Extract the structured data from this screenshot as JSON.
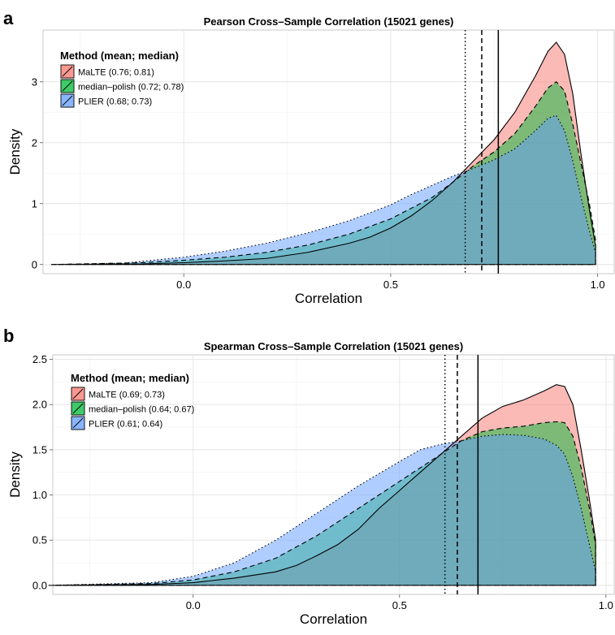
{
  "chart_data": [
    {
      "panel_label": "a",
      "type": "area",
      "title": "Pearson Cross–Sample Correlation (15021 genes)",
      "xlabel": "Correlation",
      "ylabel": "Density",
      "xlim": [
        -0.34,
        1.04
      ],
      "ylim": [
        -0.15,
        3.85
      ],
      "x_ticks": [
        0.0,
        0.5,
        1.0
      ],
      "x_tick_labels": [
        "0.0",
        "0.5",
        "1.0"
      ],
      "y_ticks": [
        0,
        1,
        2,
        3
      ],
      "y_tick_labels": [
        "0",
        "1",
        "2",
        "3"
      ],
      "grid": true,
      "legend": {
        "title": "Method (mean; median)",
        "position": "top-left",
        "entries": [
          {
            "label": "MaLTE (0.76; 0.81)",
            "color": "#F8766D"
          },
          {
            "label": "median–polish (0.72; 0.78)",
            "color": "#00BA38"
          },
          {
            "label": "PLIER (0.68; 0.73)",
            "color": "#619CFF"
          }
        ]
      },
      "vlines": [
        {
          "x": 0.76,
          "style": "solid",
          "method": "MaLTE"
        },
        {
          "x": 0.72,
          "style": "dashed",
          "method": "median-polish"
        },
        {
          "x": 0.68,
          "style": "dotted",
          "method": "PLIER"
        }
      ],
      "series": [
        {
          "name": "MaLTE (0.76; 0.81)",
          "color": "#F8766D",
          "line": "solid",
          "x": [
            -0.32,
            -0.1,
            0.0,
            0.1,
            0.2,
            0.3,
            0.4,
            0.45,
            0.5,
            0.55,
            0.6,
            0.65,
            0.7,
            0.75,
            0.8,
            0.85,
            0.88,
            0.9,
            0.92,
            0.94,
            0.96,
            0.98,
            0.995
          ],
          "y": [
            0.0,
            0.01,
            0.03,
            0.06,
            0.1,
            0.2,
            0.35,
            0.45,
            0.6,
            0.8,
            1.05,
            1.35,
            1.7,
            2.05,
            2.5,
            3.1,
            3.5,
            3.65,
            3.45,
            2.8,
            1.8,
            0.9,
            0.3
          ]
        },
        {
          "name": "median–polish (0.72; 0.78)",
          "color": "#00BA38",
          "line": "dashed",
          "x": [
            -0.32,
            -0.1,
            0.0,
            0.1,
            0.2,
            0.3,
            0.4,
            0.5,
            0.6,
            0.65,
            0.7,
            0.75,
            0.8,
            0.85,
            0.88,
            0.9,
            0.92,
            0.94,
            0.96,
            0.98,
            0.995
          ],
          "y": [
            0.0,
            0.03,
            0.07,
            0.12,
            0.2,
            0.32,
            0.5,
            0.75,
            1.1,
            1.35,
            1.62,
            1.85,
            2.15,
            2.6,
            2.9,
            3.0,
            2.85,
            2.3,
            1.65,
            1.0,
            0.4
          ]
        },
        {
          "name": "PLIER (0.68; 0.73)",
          "color": "#619CFF",
          "line": "dotted",
          "x": [
            -0.32,
            -0.15,
            0.0,
            0.1,
            0.2,
            0.3,
            0.4,
            0.5,
            0.55,
            0.6,
            0.65,
            0.7,
            0.75,
            0.8,
            0.85,
            0.88,
            0.9,
            0.92,
            0.94,
            0.96,
            0.98,
            0.995
          ],
          "y": [
            0.0,
            0.02,
            0.12,
            0.22,
            0.35,
            0.52,
            0.72,
            0.98,
            1.15,
            1.3,
            1.45,
            1.58,
            1.72,
            1.9,
            2.2,
            2.4,
            2.45,
            2.2,
            1.7,
            1.1,
            0.55,
            0.2
          ]
        }
      ]
    },
    {
      "panel_label": "b",
      "type": "area",
      "title": "Spearman Cross–Sample Correlation (15021 genes)",
      "xlabel": "Correlation",
      "ylabel": "Density",
      "xlim": [
        -0.34,
        1.02
      ],
      "ylim": [
        -0.1,
        2.55
      ],
      "x_ticks": [
        0.0,
        0.5,
        1.0
      ],
      "x_tick_labels": [
        "0.0",
        "0.5",
        "1.0"
      ],
      "y_ticks": [
        0.0,
        0.5,
        1.0,
        1.5,
        2.0,
        2.5
      ],
      "y_tick_labels": [
        "0.0",
        "0.5",
        "1.0",
        "1.5",
        "2.0",
        "2.5"
      ],
      "grid": true,
      "legend": {
        "title": "Method (mean; median)",
        "position": "top-left",
        "entries": [
          {
            "label": "MaLTE (0.69; 0.73)",
            "color": "#F8766D"
          },
          {
            "label": "median–polish (0.64; 0.67)",
            "color": "#00BA38"
          },
          {
            "label": "PLIER (0.61; 0.64)",
            "color": "#619CFF"
          }
        ]
      },
      "vlines": [
        {
          "x": 0.69,
          "style": "solid",
          "method": "MaLTE"
        },
        {
          "x": 0.64,
          "style": "dashed",
          "method": "median-polish"
        },
        {
          "x": 0.61,
          "style": "dotted",
          "method": "PLIER"
        }
      ],
      "series": [
        {
          "name": "MaLTE (0.69; 0.73)",
          "color": "#F8766D",
          "line": "solid",
          "x": [
            -0.35,
            -0.1,
            0.0,
            0.1,
            0.2,
            0.25,
            0.3,
            0.35,
            0.4,
            0.45,
            0.5,
            0.55,
            0.6,
            0.65,
            0.7,
            0.75,
            0.8,
            0.85,
            0.88,
            0.9,
            0.92,
            0.94,
            0.96,
            0.975
          ],
          "y": [
            0.0,
            0.01,
            0.03,
            0.08,
            0.15,
            0.22,
            0.33,
            0.45,
            0.62,
            0.85,
            1.05,
            1.25,
            1.45,
            1.65,
            1.85,
            1.98,
            2.05,
            2.15,
            2.22,
            2.2,
            2.0,
            1.5,
            0.95,
            0.5
          ]
        },
        {
          "name": "median–polish (0.64; 0.67)",
          "color": "#00BA38",
          "line": "dashed",
          "x": [
            -0.35,
            -0.1,
            0.0,
            0.1,
            0.2,
            0.3,
            0.4,
            0.5,
            0.6,
            0.65,
            0.7,
            0.75,
            0.8,
            0.85,
            0.88,
            0.9,
            0.92,
            0.94,
            0.96,
            0.975
          ],
          "y": [
            0.0,
            0.02,
            0.06,
            0.15,
            0.3,
            0.55,
            0.85,
            1.15,
            1.45,
            1.6,
            1.7,
            1.74,
            1.76,
            1.8,
            1.81,
            1.8,
            1.65,
            1.3,
            0.85,
            0.45
          ]
        },
        {
          "name": "PLIER (0.61; 0.64)",
          "color": "#619CFF",
          "line": "dotted",
          "x": [
            -0.35,
            -0.1,
            0.0,
            0.1,
            0.2,
            0.3,
            0.4,
            0.5,
            0.55,
            0.6,
            0.65,
            0.7,
            0.75,
            0.8,
            0.85,
            0.88,
            0.9,
            0.92,
            0.94,
            0.96,
            0.975
          ],
          "y": [
            0.0,
            0.03,
            0.1,
            0.25,
            0.5,
            0.8,
            1.1,
            1.37,
            1.5,
            1.56,
            1.6,
            1.65,
            1.67,
            1.66,
            1.62,
            1.55,
            1.45,
            1.2,
            0.85,
            0.45,
            0.15
          ]
        }
      ]
    }
  ]
}
